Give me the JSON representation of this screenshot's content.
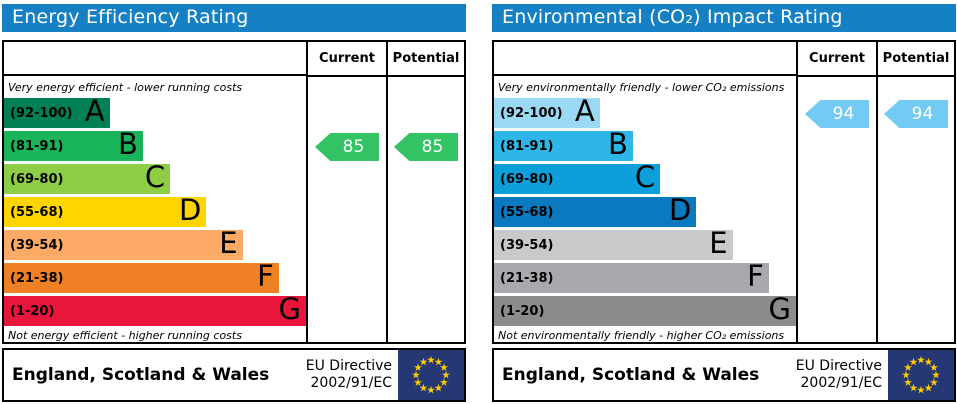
{
  "colors": {
    "header_bg": "#1580c4",
    "border": "#000000",
    "flag_bg": "#253874",
    "flag_star": "#ffcc00"
  },
  "footer": {
    "region": "England, Scotland & Wales",
    "directive_line1": "EU Directive",
    "directive_line2": "2002/91/EC"
  },
  "chart_data": [
    {
      "type": "bar",
      "chart_style": "epc-rating-bands",
      "title": "Energy Efficiency Rating",
      "columns": {
        "current": "Current",
        "potential": "Potential"
      },
      "top_note": "Very energy efficient - lower running costs",
      "bottom_note": "Not energy efficient - higher running costs",
      "bands": [
        {
          "letter": "A",
          "range": "(92-100)",
          "min": 92,
          "max": 100,
          "color": "#008054",
          "width_pct": 35
        },
        {
          "letter": "B",
          "range": "(81-91)",
          "min": 81,
          "max": 91,
          "color": "#19b459",
          "width_pct": 46
        },
        {
          "letter": "C",
          "range": "(69-80)",
          "min": 69,
          "max": 80,
          "color": "#8dce46",
          "width_pct": 55
        },
        {
          "letter": "D",
          "range": "(55-68)",
          "min": 55,
          "max": 68,
          "color": "#ffd500",
          "width_pct": 67
        },
        {
          "letter": "E",
          "range": "(39-54)",
          "min": 39,
          "max": 54,
          "color": "#fcaa65",
          "width_pct": 79
        },
        {
          "letter": "F",
          "range": "(21-38)",
          "min": 21,
          "max": 38,
          "color": "#ef8023",
          "width_pct": 91
        },
        {
          "letter": "G",
          "range": "(1-20)",
          "min": 1,
          "max": 20,
          "color": "#e9153b",
          "width_pct": 100
        }
      ],
      "current": {
        "value": 85,
        "band": "B",
        "band_index": 1,
        "arrow_color": "#33c364"
      },
      "potential": {
        "value": 85,
        "band": "B",
        "band_index": 1,
        "arrow_color": "#33c364"
      }
    },
    {
      "type": "bar",
      "chart_style": "epc-rating-bands",
      "title": "Environmental (CO₂) Impact Rating",
      "columns": {
        "current": "Current",
        "potential": "Potential"
      },
      "top_note": "Very environmentally friendly - lower CO₂ emissions",
      "bottom_note": "Not environmentally friendly - higher CO₂ emissions",
      "bands": [
        {
          "letter": "A",
          "range": "(92-100)",
          "min": 92,
          "max": 100,
          "color": "#99d9f4",
          "width_pct": 35
        },
        {
          "letter": "B",
          "range": "(81-91)",
          "min": 81,
          "max": 91,
          "color": "#2fb6e9",
          "width_pct": 46
        },
        {
          "letter": "C",
          "range": "(69-80)",
          "min": 69,
          "max": 80,
          "color": "#0d9fda",
          "width_pct": 55
        },
        {
          "letter": "D",
          "range": "(55-68)",
          "min": 55,
          "max": 68,
          "color": "#0b79c0",
          "width_pct": 67
        },
        {
          "letter": "E",
          "range": "(39-54)",
          "min": 39,
          "max": 54,
          "color": "#c8c9cb",
          "width_pct": 79
        },
        {
          "letter": "F",
          "range": "(21-38)",
          "min": 21,
          "max": 38,
          "color": "#a8a9ad",
          "width_pct": 91
        },
        {
          "letter": "G",
          "range": "(1-20)",
          "min": 1,
          "max": 20,
          "color": "#8a8c8e",
          "width_pct": 100
        }
      ],
      "current": {
        "value": 94,
        "band": "A",
        "band_index": 0,
        "arrow_color": "#73cbf3"
      },
      "potential": {
        "value": 94,
        "band": "A",
        "band_index": 0,
        "arrow_color": "#73cbf3"
      }
    }
  ]
}
